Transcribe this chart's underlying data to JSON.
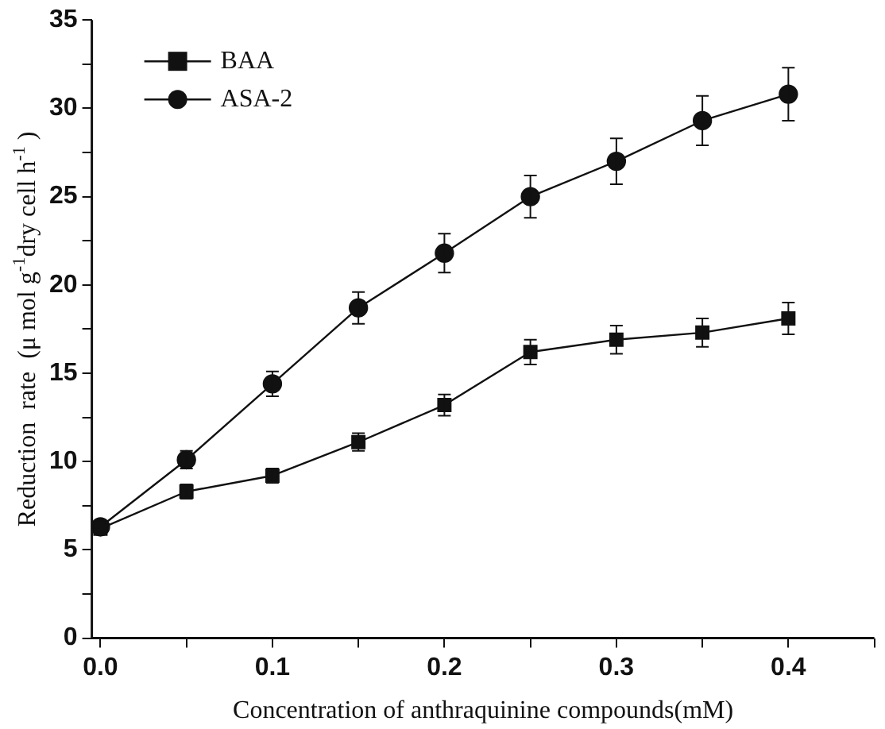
{
  "chart_data": {
    "type": "line",
    "xlabel": "Concentration of anthraquinine compounds(mM)",
    "ylabel": "Reduction  rate  (μ mol g$^{-1}$dry cell h$^{-1}$ )",
    "x": [
      0,
      0.05,
      0.1,
      0.15,
      0.2,
      0.25,
      0.3,
      0.35,
      0.4
    ],
    "xlim": [
      -0.005,
      0.45
    ],
    "xticks": [
      {
        "value": 0,
        "label": "0.0"
      },
      {
        "value": 0.05,
        "label": null
      },
      0.1,
      {
        "value": 0.15,
        "label": null
      },
      0.2,
      {
        "value": 0.25,
        "label": null
      },
      0.3,
      {
        "value": 0.35,
        "label": null
      },
      0.4,
      {
        "value": 0.45,
        "label": null
      }
    ],
    "ylim": [
      0,
      35
    ],
    "yticks": [
      0,
      {
        "value": 2.5,
        "label": null
      },
      5,
      {
        "value": 7.5,
        "label": null
      },
      10,
      {
        "value": 12.5,
        "label": null
      },
      15,
      {
        "value": 17.5,
        "label": null
      },
      20,
      {
        "value": 22.5,
        "label": null
      },
      25,
      {
        "value": 27.5,
        "label": null
      },
      30,
      {
        "value": 32.5,
        "label": null
      },
      35
    ],
    "grid": false,
    "legend": "top left",
    "line_style": "solid",
    "series": [
      {
        "name": "BAA",
        "color": "#111111",
        "marker": "square",
        "values": [
          6.2,
          8.3,
          9.2,
          11.1,
          13.2,
          16.2,
          16.9,
          17.3,
          18.1
        ],
        "errors": [
          null,
          0.4,
          0.4,
          0.5,
          0.6,
          0.7,
          0.8,
          0.8,
          0.9
        ]
      },
      {
        "name": "ASA-2",
        "color": "#111111",
        "marker": "circle",
        "values": [
          6.3,
          10.1,
          14.4,
          18.7,
          21.8,
          25.0,
          27.0,
          29.3,
          30.8
        ],
        "errors": [
          null,
          0.5,
          0.7,
          0.9,
          1.1,
          1.2,
          1.3,
          1.4,
          1.5
        ]
      }
    ]
  }
}
